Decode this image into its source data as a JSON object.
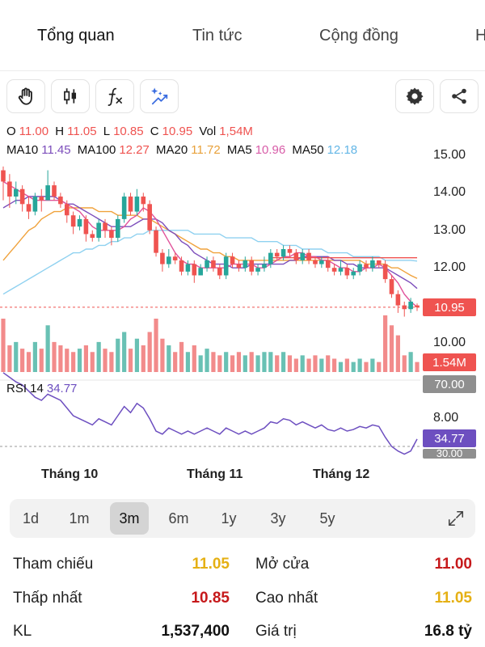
{
  "tabs": [
    "Tổng quan",
    "Tin tức",
    "Cộng đồng",
    "H"
  ],
  "toolbar": {
    "tools": [
      "hand-icon",
      "candlestick-icon",
      "function-icon",
      "ai-sparkle-icon"
    ],
    "actions": [
      "gear-icon",
      "share-icon"
    ]
  },
  "ohlc": {
    "o_label": "O",
    "o": "11.00",
    "h_label": "H",
    "h": "11.05",
    "l_label": "L",
    "l": "10.85",
    "c_label": "C",
    "c": "10.95",
    "vol_label": "Vol",
    "vol": "1,54M"
  },
  "ma": {
    "ma10_label": "MA10",
    "ma10": "11.45",
    "ma100_label": "MA100",
    "ma100": "12.27",
    "ma20_label": "MA20",
    "ma20": "11.72",
    "ma5_label": "MA5",
    "ma5": "10.96",
    "ma50_label": "MA50",
    "ma50": "12.18"
  },
  "price_axis": [
    "15.00",
    "14.00",
    "13.00",
    "12.00",
    "10.00",
    "8.00"
  ],
  "tags": {
    "last_price": "10.95",
    "volume": "1.54M",
    "rsi_upper": "70.00",
    "rsi_value": "34.77",
    "rsi_lower": "30.00"
  },
  "rsi": {
    "label": "RSI 14",
    "value": "34.77"
  },
  "months": [
    "Tháng 10",
    "Tháng 11",
    "Tháng 12"
  ],
  "ranges": [
    "1d",
    "1m",
    "3m",
    "6m",
    "1y",
    "3y",
    "5y"
  ],
  "active_range": "3m",
  "stats": {
    "ref_label": "Tham chiếu",
    "ref": "11.05",
    "open_label": "Mở cửa",
    "open": "11.00",
    "low_label": "Thấp nhất",
    "low": "10.85",
    "high_label": "Cao nhất",
    "high": "11.05",
    "vol_label": "KL",
    "vol": "1,537,400",
    "value_label": "Giá trị",
    "value": "16.8 tỷ"
  },
  "colors": {
    "up": "#26a69a",
    "down": "#ef5350",
    "ma5": "#e0529a",
    "ma10": "#7c4dbb",
    "ma20": "#f0a23c",
    "ma50": "#8fd1f0",
    "ma100": "#ef5350",
    "rsi": "#6d4fc0",
    "vol_up": "#69c1b4",
    "vol_down": "#f28b8b"
  },
  "chart_data": {
    "type": "candlestick",
    "candles": [
      [
        14.6,
        14.3,
        14.7,
        13.8
      ],
      [
        14.3,
        13.9,
        14.5,
        13.6
      ],
      [
        13.9,
        14.1,
        14.3,
        13.7
      ],
      [
        14.1,
        13.7,
        14.2,
        13.5
      ],
      [
        13.7,
        13.5,
        13.9,
        13.3
      ],
      [
        13.5,
        13.9,
        14.0,
        13.4
      ],
      [
        13.9,
        13.8,
        14.1,
        13.5
      ],
      [
        13.8,
        14.2,
        14.6,
        13.9
      ],
      [
        14.2,
        13.9,
        14.3,
        13.8
      ],
      [
        13.9,
        13.7,
        14.0,
        13.6
      ],
      [
        13.7,
        13.4,
        13.8,
        13.2
      ],
      [
        13.4,
        13.1,
        13.5,
        12.9
      ],
      [
        13.1,
        13.3,
        13.4,
        13.0
      ],
      [
        13.3,
        12.9,
        13.4,
        12.7
      ],
      [
        12.9,
        12.8,
        13.0,
        12.7
      ],
      [
        12.8,
        13.2,
        13.3,
        12.7
      ],
      [
        13.2,
        13.0,
        13.3,
        12.8
      ],
      [
        13.0,
        12.8,
        13.1,
        12.6
      ],
      [
        12.8,
        13.3,
        13.4,
        12.7
      ],
      [
        13.3,
        13.9,
        14.0,
        13.2
      ],
      [
        13.9,
        13.5,
        14.0,
        13.4
      ],
      [
        13.5,
        13.9,
        14.1,
        13.4
      ],
      [
        13.9,
        13.7,
        14.0,
        13.5
      ],
      [
        13.7,
        13.0,
        13.8,
        12.9
      ],
      [
        13.0,
        12.4,
        13.1,
        12.3
      ],
      [
        12.4,
        12.1,
        12.5,
        11.9
      ],
      [
        12.1,
        12.3,
        12.5,
        12.0
      ],
      [
        12.3,
        12.2,
        12.4,
        12.1
      ],
      [
        12.2,
        11.9,
        12.3,
        11.8
      ],
      [
        11.9,
        12.1,
        12.2,
        11.8
      ],
      [
        12.1,
        11.8,
        12.2,
        11.6
      ],
      [
        11.8,
        12.0,
        12.1,
        11.8
      ],
      [
        12.0,
        12.2,
        12.3,
        11.9
      ],
      [
        12.2,
        12.0,
        12.3,
        11.9
      ],
      [
        12.0,
        11.8,
        12.1,
        11.7
      ],
      [
        11.8,
        12.3,
        12.4,
        11.7
      ],
      [
        12.3,
        12.1,
        12.4,
        12.0
      ],
      [
        12.1,
        12.0,
        12.2,
        11.9
      ],
      [
        12.0,
        12.2,
        12.3,
        11.9
      ],
      [
        12.2,
        11.9,
        12.3,
        11.8
      ],
      [
        11.9,
        12.0,
        12.1,
        11.8
      ],
      [
        12.0,
        12.1,
        12.3,
        11.9
      ],
      [
        12.1,
        12.4,
        12.5,
        12.0
      ],
      [
        12.4,
        12.3,
        12.5,
        12.2
      ],
      [
        12.3,
        12.5,
        12.6,
        12.2
      ],
      [
        12.5,
        12.4,
        12.6,
        12.3
      ],
      [
        12.4,
        12.2,
        12.5,
        12.1
      ],
      [
        12.2,
        12.4,
        12.5,
        12.1
      ],
      [
        12.4,
        12.2,
        12.5,
        12.1
      ],
      [
        12.2,
        12.1,
        12.3,
        12.0
      ],
      [
        12.1,
        12.2,
        12.3,
        12.0
      ],
      [
        12.2,
        12.0,
        12.3,
        11.9
      ],
      [
        12.0,
        11.9,
        12.1,
        11.8
      ],
      [
        11.9,
        12.0,
        12.2,
        11.8
      ],
      [
        12.0,
        11.8,
        12.1,
        11.7
      ],
      [
        11.8,
        11.9,
        12.0,
        11.7
      ],
      [
        11.9,
        12.1,
        12.2,
        11.8
      ],
      [
        12.1,
        12.0,
        12.2,
        11.9
      ],
      [
        12.0,
        12.2,
        12.3,
        11.9
      ],
      [
        12.2,
        12.1,
        12.2,
        12.0
      ],
      [
        12.1,
        11.7,
        12.2,
        11.6
      ],
      [
        11.7,
        11.3,
        11.8,
        11.2
      ],
      [
        11.3,
        11.0,
        11.4,
        10.8
      ],
      [
        11.0,
        10.9,
        11.1,
        10.7
      ],
      [
        10.9,
        11.1,
        11.2,
        10.8
      ],
      [
        11.0,
        10.95,
        11.05,
        10.85
      ]
    ],
    "volumes": [
      1.6,
      0.8,
      0.9,
      0.7,
      0.6,
      0.9,
      0.7,
      1.4,
      0.9,
      0.8,
      0.7,
      0.6,
      0.7,
      0.8,
      0.6,
      0.9,
      0.7,
      0.6,
      1.0,
      1.2,
      0.7,
      1.0,
      0.8,
      1.2,
      1.6,
      1.0,
      0.8,
      0.6,
      0.9,
      0.6,
      0.8,
      0.5,
      0.7,
      0.6,
      0.5,
      0.6,
      0.5,
      0.6,
      0.5,
      0.6,
      0.5,
      0.6,
      0.6,
      0.5,
      0.6,
      0.5,
      0.4,
      0.5,
      0.4,
      0.5,
      0.4,
      0.5,
      0.4,
      0.3,
      0.4,
      0.3,
      0.4,
      0.3,
      0.4,
      0.3,
      1.7,
      1.4,
      1.1,
      0.5,
      0.6,
      0.3
    ],
    "ma5": [
      14.3,
      14.2,
      14.1,
      14.0,
      13.9,
      13.8,
      13.8,
      13.8,
      13.8,
      13.8,
      13.7,
      13.6,
      13.5,
      13.3,
      13.1,
      13.0,
      13.0,
      13.0,
      13.0,
      13.1,
      13.3,
      13.4,
      13.6,
      13.5,
      13.3,
      13.0,
      12.7,
      12.4,
      12.2,
      12.1,
      12.1,
      12.0,
      12.0,
      12.0,
      12.0,
      12.0,
      12.1,
      12.1,
      12.1,
      12.1,
      12.0,
      12.0,
      12.1,
      12.2,
      12.3,
      12.3,
      12.4,
      12.4,
      12.3,
      12.3,
      12.2,
      12.2,
      12.1,
      12.0,
      12.0,
      11.9,
      11.9,
      12.0,
      12.0,
      12.1,
      12.0,
      11.8,
      11.6,
      11.3,
      11.1,
      10.96
    ],
    "ma10": [
      13.6,
      13.7,
      13.8,
      13.8,
      13.9,
      13.9,
      13.9,
      13.9,
      13.9,
      13.8,
      13.7,
      13.7,
      13.6,
      13.5,
      13.4,
      13.3,
      13.2,
      13.1,
      13.1,
      13.1,
      13.1,
      13.2,
      13.3,
      13.3,
      13.3,
      13.2,
      13.0,
      12.9,
      12.7,
      12.6,
      12.4,
      12.3,
      12.2,
      12.1,
      12.1,
      12.1,
      12.0,
      12.0,
      12.0,
      12.1,
      12.1,
      12.1,
      12.1,
      12.1,
      12.1,
      12.2,
      12.2,
      12.3,
      12.3,
      12.3,
      12.3,
      12.3,
      12.2,
      12.2,
      12.1,
      12.1,
      12.0,
      12.0,
      12.0,
      12.0,
      12.0,
      11.9,
      11.8,
      11.7,
      11.6,
      11.45
    ],
    "ma20": [
      12.2,
      12.4,
      12.6,
      12.8,
      13.0,
      13.1,
      13.3,
      13.4,
      13.5,
      13.5,
      13.6,
      13.6,
      13.6,
      13.6,
      13.6,
      13.5,
      13.5,
      13.5,
      13.4,
      13.4,
      13.4,
      13.4,
      13.3,
      13.3,
      13.2,
      13.1,
      13.0,
      12.9,
      12.8,
      12.7,
      12.6,
      12.5,
      12.5,
      12.4,
      12.4,
      12.3,
      12.3,
      12.2,
      12.2,
      12.2,
      12.2,
      12.2,
      12.2,
      12.2,
      12.2,
      12.2,
      12.2,
      12.2,
      12.2,
      12.2,
      12.2,
      12.2,
      12.2,
      12.2,
      12.2,
      12.2,
      12.2,
      12.1,
      12.1,
      12.1,
      12.1,
      12.0,
      12.0,
      11.9,
      11.8,
      11.72
    ],
    "ma50": [
      11.3,
      11.4,
      11.5,
      11.6,
      11.7,
      11.8,
      11.9,
      12.0,
      12.1,
      12.2,
      12.3,
      12.4,
      12.4,
      12.5,
      12.5,
      12.6,
      12.6,
      12.7,
      12.7,
      12.8,
      12.8,
      12.9,
      12.9,
      13.0,
      13.0,
      13.0,
      13.0,
      13.0,
      13.0,
      13.0,
      12.9,
      12.9,
      12.9,
      12.9,
      12.9,
      12.8,
      12.8,
      12.8,
      12.8,
      12.8,
      12.7,
      12.7,
      12.7,
      12.7,
      12.6,
      12.6,
      12.6,
      12.5,
      12.5,
      12.5,
      12.5,
      12.4,
      12.4,
      12.4,
      12.4,
      12.3,
      12.3,
      12.3,
      12.3,
      12.3,
      12.2,
      12.2,
      12.2,
      12.2,
      12.2,
      12.18
    ],
    "ma100": [
      12.27,
      12.27
    ],
    "rsi": [
      78,
      75,
      72,
      70,
      66,
      62,
      60,
      64,
      62,
      60,
      55,
      50,
      48,
      46,
      44,
      48,
      46,
      44,
      50,
      56,
      52,
      58,
      55,
      48,
      40,
      38,
      42,
      40,
      38,
      40,
      38,
      40,
      42,
      40,
      38,
      42,
      40,
      38,
      40,
      38,
      40,
      42,
      46,
      45,
      48,
      47,
      44,
      46,
      44,
      42,
      44,
      41,
      40,
      42,
      40,
      41,
      43,
      42,
      44,
      43,
      36,
      30,
      27,
      25,
      27,
      34.77
    ],
    "price_range": [
      8.0,
      15.6
    ]
  }
}
